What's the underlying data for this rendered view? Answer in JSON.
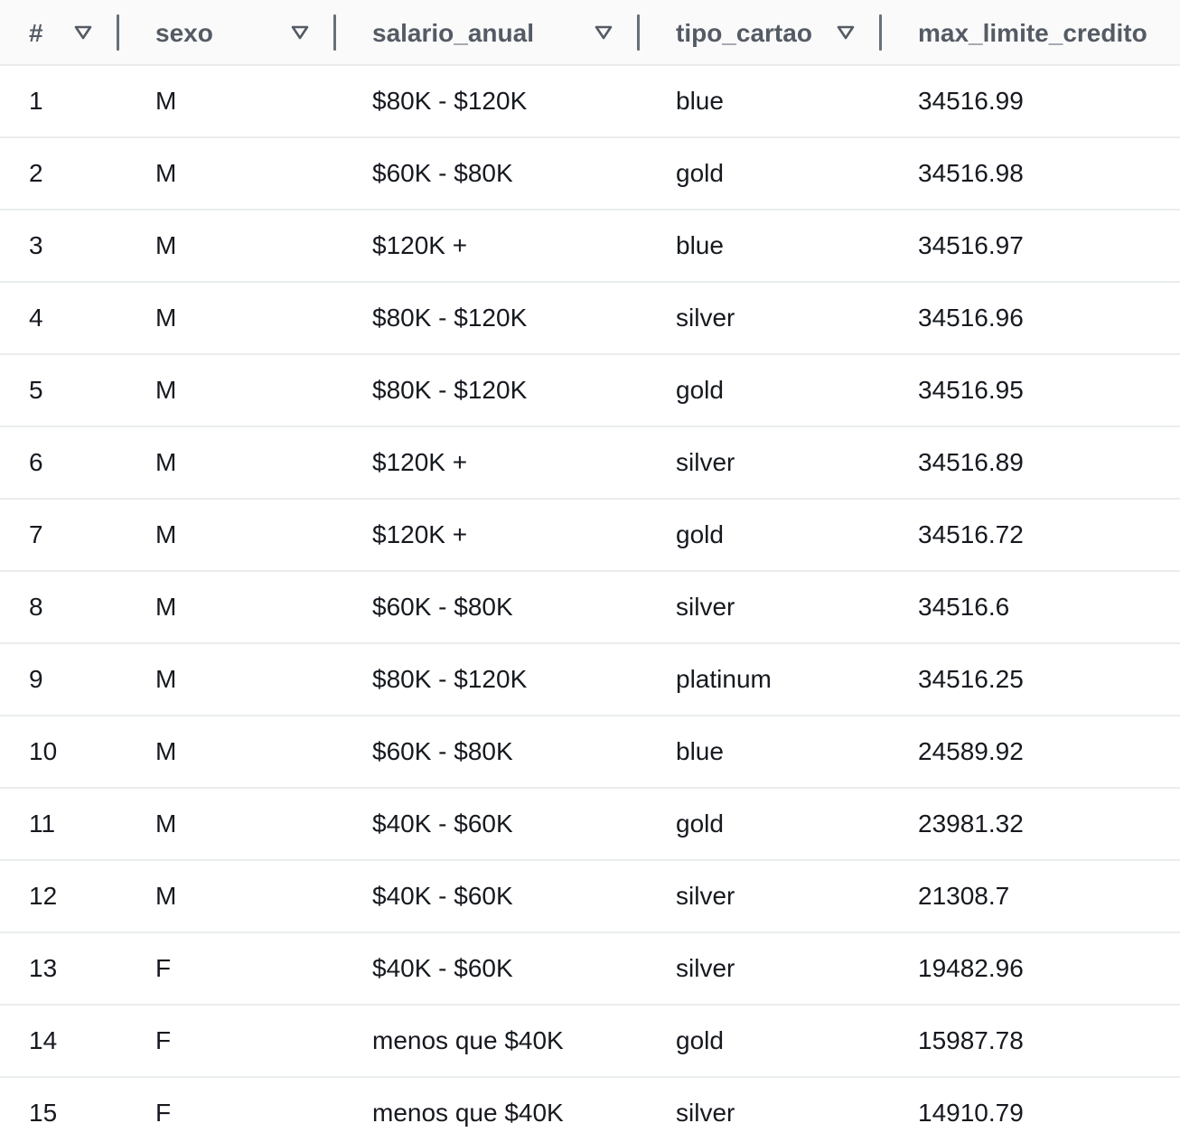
{
  "columns": [
    {
      "label": "#"
    },
    {
      "label": "sexo"
    },
    {
      "label": "salario_anual"
    },
    {
      "label": "tipo_cartao"
    },
    {
      "label": "max_limite_credito"
    }
  ],
  "icons": {
    "sort": "sort-descending-triangle-icon"
  },
  "colors": {
    "header_bg": "#fafafa",
    "header_text": "#545b64",
    "row_text": "#16191f",
    "divider": "#687078",
    "row_border": "#eaeded"
  },
  "rows": [
    [
      "1",
      "M",
      "$80K - $120K",
      "blue",
      "34516.99"
    ],
    [
      "2",
      "M",
      "$60K - $80K",
      "gold",
      "34516.98"
    ],
    [
      "3",
      "M",
      "$120K +",
      "blue",
      "34516.97"
    ],
    [
      "4",
      "M",
      "$80K - $120K",
      "silver",
      "34516.96"
    ],
    [
      "5",
      "M",
      "$80K - $120K",
      "gold",
      "34516.95"
    ],
    [
      "6",
      "M",
      "$120K +",
      "silver",
      "34516.89"
    ],
    [
      "7",
      "M",
      "$120K +",
      "gold",
      "34516.72"
    ],
    [
      "8",
      "M",
      "$60K - $80K",
      "silver",
      "34516.6"
    ],
    [
      "9",
      "M",
      "$80K - $120K",
      "platinum",
      "34516.25"
    ],
    [
      "10",
      "M",
      "$60K - $80K",
      "blue",
      "24589.92"
    ],
    [
      "11",
      "M",
      "$40K - $60K",
      "gold",
      "23981.32"
    ],
    [
      "12",
      "M",
      "$40K - $60K",
      "silver",
      "21308.7"
    ],
    [
      "13",
      "F",
      "$40K - $60K",
      "silver",
      "19482.96"
    ],
    [
      "14",
      "F",
      "menos que $40K",
      "gold",
      "15987.78"
    ],
    [
      "15",
      "F",
      "menos que $40K",
      "silver",
      "14910.79"
    ]
  ]
}
